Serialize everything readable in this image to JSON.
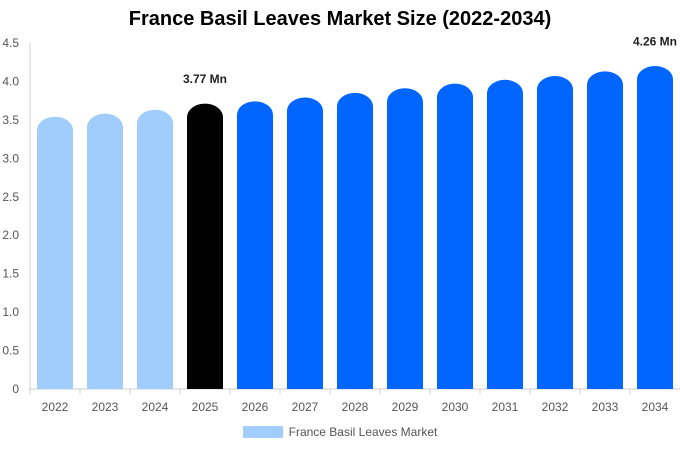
{
  "chart_data": {
    "type": "bar",
    "title": "France Basil Leaves Market Size (2022-2034)",
    "xlabel": "",
    "ylabel": "",
    "categories": [
      "2022",
      "2023",
      "2024",
      "2025",
      "2026",
      "2027",
      "2028",
      "2029",
      "2030",
      "2031",
      "2032",
      "2033",
      "2034"
    ],
    "series": [
      {
        "name": "France Basil Leaves Market",
        "values": [
          3.6,
          3.64,
          3.69,
          3.77,
          3.8,
          3.85,
          3.91,
          3.97,
          4.03,
          4.08,
          4.13,
          4.19,
          4.26
        ]
      }
    ],
    "ylim": [
      0,
      4.5
    ],
    "yticks": [
      "0",
      "0.5",
      "1.0",
      "1.5",
      "2.0",
      "2.5",
      "3.0",
      "3.5",
      "4.0",
      "4.5"
    ],
    "data_labels": [
      {
        "index": 3,
        "text": "3.77 Mn"
      },
      {
        "index": 12,
        "text": "4.26 Mn"
      }
    ],
    "bar_colors": {
      "historical": "#a0cdfb",
      "current": "#000000",
      "forecast": "#0066ff"
    },
    "historical_count": 3,
    "current_index": 3,
    "grid": false,
    "legend": {
      "position": "bottom",
      "label": "France Basil Leaves Market",
      "color": "#a0cdfb"
    }
  }
}
